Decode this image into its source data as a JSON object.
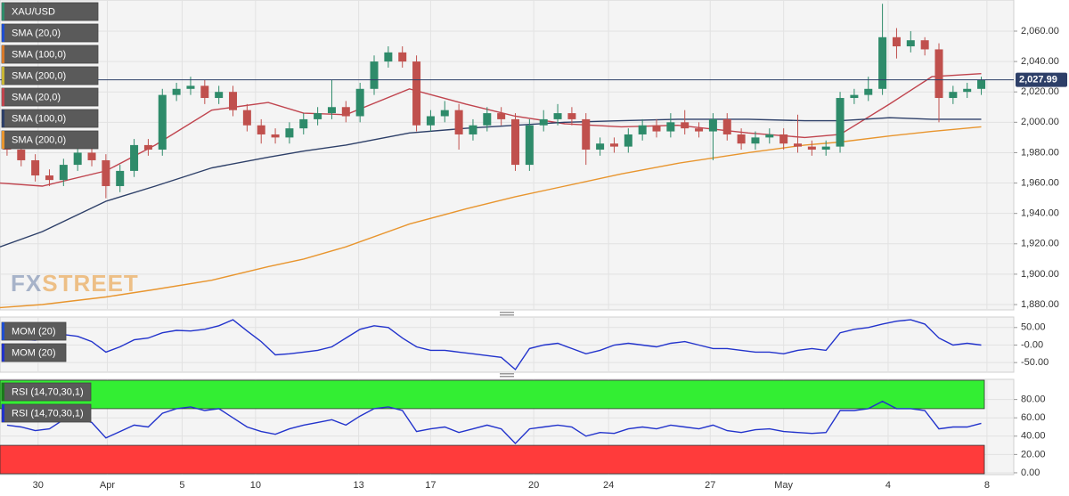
{
  "chart_data": [
    {
      "type": "candlestick",
      "legend": [
        {
          "name": "XAU/USD",
          "color": "#2e8b6a"
        },
        {
          "name": "SMA (20,0)",
          "color": "#1f4fd1"
        },
        {
          "name": "SMA (100,0)",
          "color": "#d87a2a"
        },
        {
          "name": "SMA (200,0)",
          "color": "#c9b634"
        }
      ],
      "up_color": "#2e8b6a",
      "down_color": "#c0504d",
      "open": [
        1986,
        1982,
        1975,
        1965,
        1962,
        1972,
        1980,
        1975,
        1958,
        1968,
        1985,
        1982,
        2018,
        2022,
        2024,
        2016,
        2020,
        2008,
        1998,
        1992,
        1990,
        1996,
        2002,
        2006,
        2010,
        2004,
        2022,
        2040,
        2046,
        2040,
        1998,
        2004,
        2008,
        1992,
        1998,
        2006,
        2002,
        1972,
        1998,
        2002,
        2006,
        2002,
        1982,
        1986,
        1984,
        1992,
        1998,
        1994,
        2000,
        1996,
        1994,
        2002,
        1992,
        1986,
        1990,
        1992,
        1986,
        1984,
        1982,
        1984,
        2016,
        2018,
        2022,
        2056,
        2050,
        2054,
        2048,
        2016,
        2020,
        2022
      ],
      "high": [
        1990,
        1986,
        1979,
        1969,
        1976,
        1984,
        1984,
        1979,
        1972,
        1989,
        1989,
        2022,
        2026,
        2030,
        2028,
        2024,
        2024,
        2012,
        2002,
        1996,
        2000,
        2006,
        2010,
        2028,
        2014,
        2026,
        2044,
        2050,
        2050,
        2044,
        2008,
        2014,
        2012,
        2002,
        2010,
        2010,
        2006,
        2002,
        2008,
        2012,
        2010,
        2006,
        1990,
        1990,
        1996,
        2002,
        2002,
        2006,
        2008,
        2000,
        2006,
        2006,
        1996,
        1994,
        1996,
        1996,
        2005,
        1988,
        1988,
        2020,
        2022,
        2030,
        2078,
        2062,
        2060,
        2056,
        2052,
        2024,
        2026,
        2030
      ],
      "low": [
        1978,
        1971,
        1961,
        1958,
        1958,
        1968,
        1971,
        1950,
        1954,
        1964,
        1978,
        1978,
        2014,
        2018,
        2012,
        2012,
        2004,
        1994,
        1986,
        1986,
        1986,
        1992,
        1998,
        2002,
        2000,
        2000,
        2018,
        2036,
        2036,
        1994,
        1994,
        2000,
        1982,
        1988,
        1994,
        1998,
        1968,
        1968,
        1994,
        1998,
        1998,
        1972,
        1978,
        1980,
        1980,
        1988,
        1990,
        1990,
        1992,
        1990,
        1975,
        1988,
        1982,
        1982,
        1986,
        1982,
        1980,
        1978,
        1978,
        1980,
        2012,
        2014,
        2018,
        2042,
        2046,
        2044,
        2000,
        2012,
        2016,
        2018
      ],
      "close": [
        1982,
        1975,
        1965,
        1962,
        1972,
        1980,
        1975,
        1958,
        1968,
        1985,
        1982,
        2018,
        2022,
        2024,
        2016,
        2020,
        2008,
        1998,
        1992,
        1990,
        1996,
        2002,
        2006,
        2010,
        2004,
        2022,
        2040,
        2046,
        2040,
        1998,
        2004,
        2008,
        1992,
        1998,
        2006,
        2002,
        1972,
        1998,
        2002,
        2006,
        2002,
        1982,
        1986,
        1984,
        1992,
        1998,
        1994,
        2000,
        1996,
        1994,
        2002,
        1992,
        1986,
        1990,
        1992,
        1986,
        1984,
        1982,
        1984,
        2016,
        2018,
        2022,
        2056,
        2050,
        2054,
        2048,
        2016,
        2020,
        2022,
        2028
      ],
      "series": [
        {
          "name": "SMA (20,0)",
          "color": "#c0444e",
          "x": [
            -0.5,
            2.5,
            7,
            10.5,
            14.5,
            18.5,
            21,
            24,
            28.5,
            32.5,
            36,
            39.5,
            43.5,
            47.5,
            52.5,
            56.5,
            59,
            62.5,
            65.5,
            69
          ],
          "values": [
            1960,
            1958,
            1968,
            1985,
            2008,
            2013,
            2006,
            2005,
            2022,
            2012,
            2004,
            1999,
            1997,
            1998,
            1993,
            1990,
            1992,
            2012,
            2030,
            2032
          ]
        },
        {
          "name": "SMA (100,0)",
          "color": "#2d3f68",
          "x": [
            -0.5,
            2.5,
            7,
            10.5,
            14.5,
            18.5,
            21,
            24,
            28.5,
            32.5,
            36,
            39.5,
            43.5,
            47.5,
            52.5,
            56.5,
            59,
            62.5,
            65.5,
            69
          ],
          "values": [
            1918,
            1928,
            1948,
            1958,
            1970,
            1977,
            1981,
            1985,
            1993,
            1996,
            1998,
            2000,
            2001,
            2002,
            2002,
            2001,
            2001,
            2003,
            2002,
            2002
          ]
        },
        {
          "name": "SMA (200,0)",
          "color": "#e8952e",
          "x": [
            -0.5,
            2.5,
            7,
            10.5,
            14.5,
            18.5,
            21,
            24,
            28.5,
            32.5,
            36,
            39.5,
            43.5,
            47.5,
            52.5,
            56.5,
            59,
            62.5,
            65.5,
            69
          ],
          "values": [
            1878,
            1880,
            1885,
            1890,
            1896,
            1905,
            1910,
            1918,
            1933,
            1943,
            1951,
            1958,
            1966,
            1973,
            1980,
            1985,
            1987,
            1991,
            1994,
            1997
          ]
        }
      ],
      "last_price": {
        "value": 2027.99,
        "label": "2,027.99",
        "color": "#2d3f68"
      },
      "watermark": [
        "FX",
        "STREET"
      ],
      "xlim": [
        -0.5,
        71.3
      ],
      "xticks": [
        {
          "value": 2.2,
          "label": "30"
        },
        {
          "value": 7.1,
          "label": "Apr"
        },
        {
          "value": 12.4,
          "label": "5"
        },
        {
          "value": 17.6,
          "label": "10"
        },
        {
          "value": 24.9,
          "label": "13"
        },
        {
          "value": 30,
          "label": "17"
        },
        {
          "value": 37.3,
          "label": "20"
        },
        {
          "value": 42.6,
          "label": "24"
        },
        {
          "value": 49.8,
          "label": "27"
        },
        {
          "value": 55,
          "label": "May"
        },
        {
          "value": 62.4,
          "label": "4"
        },
        {
          "value": 69.4,
          "label": "8"
        }
      ],
      "ylim": [
        1876.5,
        2080.5
      ],
      "yticks": [
        {
          "value": 1880,
          "label": "1,880.00"
        },
        {
          "value": 1900,
          "label": "1,900.00"
        },
        {
          "value": 1920,
          "label": "1,920.00"
        },
        {
          "value": 1940,
          "label": "1,940.00"
        },
        {
          "value": 1960,
          "label": "1,960.00"
        },
        {
          "value": 1980,
          "label": "1,980.00"
        },
        {
          "value": 2000,
          "label": "2,000.00"
        },
        {
          "value": 2020,
          "label": "2,020.00"
        },
        {
          "value": 2040,
          "label": "2,040.00"
        },
        {
          "value": 2060,
          "label": "2,060.00"
        }
      ],
      "grid": true
    },
    {
      "type": "line",
      "legend": [
        {
          "name": "MOM (20)",
          "color": "#1f4fd1"
        }
      ],
      "series": [
        {
          "name": "MOM (20)",
          "color": "#2233cc",
          "values": [
            18,
            16,
            14,
            22,
            30,
            25,
            10,
            -20,
            -5,
            15,
            20,
            35,
            42,
            40,
            45,
            55,
            72,
            40,
            10,
            -28,
            -25,
            -20,
            -15,
            -5,
            20,
            45,
            55,
            50,
            20,
            -5,
            -15,
            -15,
            -20,
            -25,
            -30,
            -35,
            -70,
            -10,
            0,
            5,
            -10,
            -25,
            -15,
            0,
            5,
            0,
            -5,
            5,
            10,
            0,
            -10,
            -10,
            -15,
            -20,
            -20,
            -25,
            -15,
            -10,
            -15,
            35,
            45,
            50,
            60,
            68,
            72,
            60,
            20,
            0,
            5,
            0
          ]
        }
      ],
      "ylim": [
        -77.5,
        80
      ],
      "yticks": [
        {
          "value": 50,
          "label": "50.00"
        },
        {
          "value": 0,
          "label": "-0.00"
        },
        {
          "value": -50,
          "label": "-50.00"
        }
      ],
      "grid": true
    },
    {
      "type": "line",
      "legend": [
        {
          "name": "RSI (14,70,30,1)",
          "color": "#1a7a1a"
        }
      ],
      "series": [
        {
          "name": "RSI (14,70,30,1)",
          "color": "#2233cc",
          "values": [
            52,
            50,
            46,
            48,
            58,
            60,
            55,
            38,
            45,
            52,
            50,
            65,
            70,
            72,
            68,
            70,
            60,
            50,
            45,
            42,
            48,
            52,
            55,
            58,
            52,
            62,
            70,
            72,
            68,
            45,
            48,
            50,
            44,
            48,
            52,
            48,
            32,
            48,
            50,
            52,
            50,
            40,
            44,
            43,
            48,
            50,
            48,
            52,
            50,
            48,
            52,
            46,
            44,
            47,
            48,
            45,
            44,
            43,
            44,
            68,
            68,
            70,
            78,
            70,
            70,
            68,
            48,
            50,
            50,
            54
          ]
        }
      ],
      "overbought": 70,
      "overbought_color": "#33ee33",
      "oversold": 30,
      "oversold_color": "#ff3b3b",
      "ylim": [
        -2,
        102
      ],
      "yticks": [
        {
          "value": 0,
          "label": "0.00"
        },
        {
          "value": 20,
          "label": "20.00"
        },
        {
          "value": 40,
          "label": "40.00"
        },
        {
          "value": 60,
          "label": "60.00"
        },
        {
          "value": 80,
          "label": "80.00"
        }
      ],
      "grid": true
    }
  ]
}
